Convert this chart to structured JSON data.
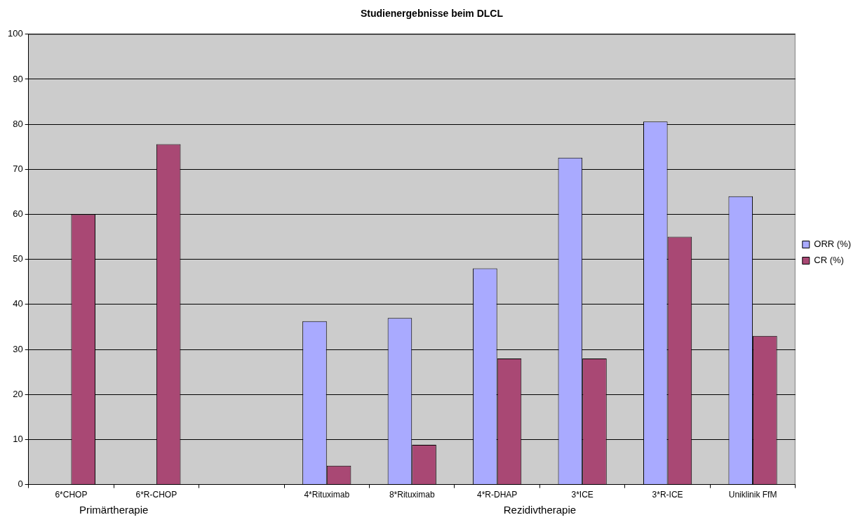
{
  "chart_data": {
    "type": "bar",
    "title": "Studienergebnisse beim DLCL",
    "categories": [
      "6*CHOP",
      "6*R-CHOP",
      null,
      "4*Rituximab",
      "8*Rituximab",
      "4*R-DHAP",
      "3*ICE",
      "3*R-ICE",
      "Uniklinik FfM"
    ],
    "series": [
      {
        "name": "ORR (%)",
        "color": "#a9aaff",
        "values": [
          null,
          null,
          null,
          36.3,
          37,
          48,
          72.6,
          80.6,
          64
        ]
      },
      {
        "name": "CR (%)",
        "color": "#a94874",
        "values": [
          60,
          75.6,
          null,
          4.2,
          8.8,
          28,
          28,
          55,
          33
        ]
      }
    ],
    "ylim": [
      0,
      100
    ],
    "yticks": [
      0,
      10,
      20,
      30,
      40,
      50,
      60,
      70,
      80,
      90,
      100
    ],
    "grid": "y",
    "legend": "right",
    "annotations": [
      "Primärtherapie",
      "Rezidivtherapie"
    ]
  }
}
